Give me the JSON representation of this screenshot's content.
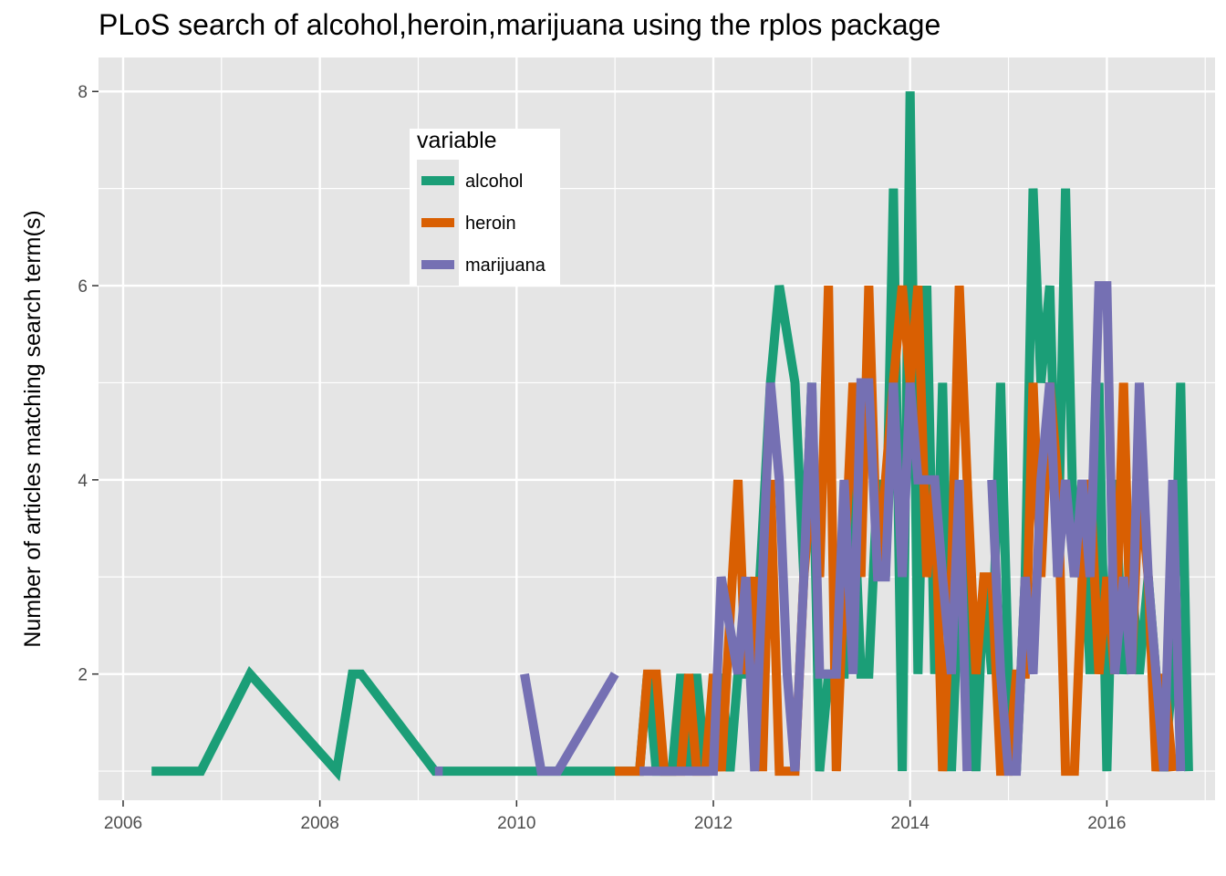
{
  "chart_data": {
    "type": "line",
    "title": "PLoS search of alcohol,heroin,marijuana using the rplos package",
    "xlabel": "",
    "ylabel": "Number of articles matching search term(s)",
    "x_ticks": [
      "2006",
      "2008",
      "2010",
      "2012",
      "2014",
      "2016"
    ],
    "y_ticks": [
      "2",
      "4",
      "6",
      "8"
    ],
    "xlim": [
      2005.75,
      2017.1
    ],
    "ylim": [
      0.7,
      8.35
    ],
    "grid": true,
    "legend": {
      "title": "variable",
      "position": "inside-top-center",
      "entries": [
        "alcohol",
        "heroin",
        "marijuana"
      ]
    },
    "colors": {
      "alcohol": "#1b9e77",
      "heroin": "#d95f02",
      "marijuana": "#7570b3",
      "panel": "#e5e5e5",
      "grid": "#ffffff"
    },
    "series": [
      {
        "name": "alcohol",
        "color": "#1b9e77",
        "points": [
          [
            2006.29,
            1
          ],
          [
            2006.79,
            1
          ],
          [
            2007.29,
            2
          ],
          [
            2008.17,
            1
          ],
          [
            2008.33,
            2
          ],
          [
            2008.42,
            2
          ],
          [
            2009.17,
            1
          ],
          [
            2009.5,
            1
          ],
          [
            2010.0,
            1
          ],
          [
            2010.5,
            1
          ],
          [
            2011.0,
            1
          ],
          [
            2011.25,
            1
          ],
          [
            2011.33,
            2
          ],
          [
            2011.42,
            1
          ],
          [
            2011.58,
            1
          ],
          [
            2011.67,
            2
          ],
          [
            2011.75,
            1
          ],
          [
            2011.83,
            2
          ],
          [
            2011.92,
            1
          ],
          [
            2012.08,
            2
          ],
          [
            2012.17,
            1
          ],
          [
            2012.25,
            2
          ],
          [
            2012.42,
            2
          ],
          [
            2012.58,
            5
          ],
          [
            2012.67,
            6
          ],
          [
            2012.83,
            5
          ],
          [
            2012.92,
            3
          ],
          [
            2013.0,
            5
          ],
          [
            2013.08,
            1
          ],
          [
            2013.17,
            2
          ],
          [
            2013.33,
            2
          ],
          [
            2013.42,
            4
          ],
          [
            2013.5,
            2
          ],
          [
            2013.58,
            2
          ],
          [
            2013.67,
            4
          ],
          [
            2013.75,
            3
          ],
          [
            2013.83,
            7
          ],
          [
            2013.92,
            1
          ],
          [
            2014.0,
            8
          ],
          [
            2014.08,
            2
          ],
          [
            2014.17,
            6
          ],
          [
            2014.25,
            2
          ],
          [
            2014.33,
            5
          ],
          [
            2014.42,
            1
          ],
          [
            2014.5,
            3
          ],
          [
            2014.58,
            4
          ],
          [
            2014.67,
            1
          ],
          [
            2014.75,
            3
          ],
          [
            2014.83,
            2
          ],
          [
            2014.92,
            5
          ],
          [
            2015.0,
            2
          ],
          [
            2015.08,
            1
          ],
          [
            2015.17,
            3
          ],
          [
            2015.25,
            7
          ],
          [
            2015.33,
            5
          ],
          [
            2015.42,
            6
          ],
          [
            2015.5,
            3
          ],
          [
            2015.58,
            7
          ],
          [
            2015.67,
            3
          ],
          [
            2015.75,
            4
          ],
          [
            2015.83,
            2
          ],
          [
            2015.92,
            5
          ],
          [
            2016.0,
            1
          ],
          [
            2016.08,
            4
          ],
          [
            2016.17,
            2
          ],
          [
            2016.25,
            3
          ],
          [
            2016.33,
            2
          ],
          [
            2016.42,
            3
          ],
          [
            2016.5,
            2
          ],
          [
            2016.58,
            1
          ],
          [
            2016.67,
            2
          ],
          [
            2016.75,
            5
          ],
          [
            2016.83,
            1
          ]
        ]
      },
      {
        "name": "heroin",
        "color": "#d95f02",
        "points": [
          [
            2011.0,
            1
          ],
          [
            2011.08,
            1
          ],
          [
            2011.25,
            1
          ],
          [
            2011.33,
            2
          ],
          [
            2011.42,
            2
          ],
          [
            2011.5,
            1
          ],
          [
            2011.67,
            1
          ],
          [
            2011.75,
            2
          ],
          [
            2011.83,
            1
          ],
          [
            2011.92,
            1
          ],
          [
            2012.0,
            2
          ],
          [
            2012.08,
            1
          ],
          [
            2012.25,
            4
          ],
          [
            2012.33,
            2
          ],
          [
            2012.42,
            3
          ],
          [
            2012.5,
            1
          ],
          [
            2012.58,
            4
          ],
          [
            2012.67,
            1
          ],
          [
            2012.83,
            1
          ],
          [
            2012.92,
            3
          ],
          [
            2013.0,
            4
          ],
          [
            2013.08,
            3
          ],
          [
            2013.17,
            6
          ],
          [
            2013.25,
            1
          ],
          [
            2013.33,
            3
          ],
          [
            2013.42,
            5
          ],
          [
            2013.5,
            3
          ],
          [
            2013.58,
            6
          ],
          [
            2013.67,
            3
          ],
          [
            2013.75,
            4
          ],
          [
            2013.83,
            5
          ],
          [
            2013.92,
            6
          ],
          [
            2014.0,
            5
          ],
          [
            2014.08,
            6
          ],
          [
            2014.17,
            3
          ],
          [
            2014.25,
            4
          ],
          [
            2014.33,
            1
          ],
          [
            2014.42,
            3
          ],
          [
            2014.5,
            6
          ],
          [
            2014.58,
            4
          ],
          [
            2014.67,
            2
          ],
          [
            2014.75,
            3
          ],
          [
            2014.83,
            3
          ],
          [
            2014.92,
            1
          ],
          [
            2015.0,
            1
          ],
          [
            2015.08,
            2
          ],
          [
            2015.17,
            2
          ],
          [
            2015.25,
            5
          ],
          [
            2015.33,
            3
          ],
          [
            2015.42,
            5
          ],
          [
            2015.5,
            4
          ],
          [
            2015.58,
            1
          ],
          [
            2015.67,
            1
          ],
          [
            2015.75,
            3
          ],
          [
            2015.83,
            4
          ],
          [
            2015.92,
            2
          ],
          [
            2016.0,
            3
          ],
          [
            2016.08,
            2
          ],
          [
            2016.17,
            5
          ],
          [
            2016.25,
            2
          ],
          [
            2016.33,
            4
          ],
          [
            2016.42,
            3
          ],
          [
            2016.5,
            1
          ],
          [
            2016.58,
            2
          ],
          [
            2016.67,
            1
          ]
        ]
      },
      {
        "name": "marijuana",
        "color": "#7570b3",
        "points": [
          [
            2009.17,
            1
          ],
          [
            2009.25,
            1
          ],
          null,
          [
            2010.08,
            2
          ],
          [
            2010.25,
            1
          ],
          [
            2010.42,
            1
          ],
          [
            2011.0,
            2
          ],
          null,
          [
            2011.25,
            1
          ],
          [
            2011.5,
            1
          ],
          [
            2011.75,
            1
          ],
          [
            2012.0,
            1
          ],
          [
            2012.08,
            3
          ],
          [
            2012.25,
            2
          ],
          [
            2012.33,
            3
          ],
          [
            2012.42,
            1
          ],
          [
            2012.58,
            5
          ],
          [
            2012.67,
            4
          ],
          [
            2012.75,
            2
          ],
          [
            2012.83,
            1
          ],
          [
            2012.92,
            3
          ],
          [
            2013.0,
            5
          ],
          [
            2013.08,
            2
          ],
          [
            2013.25,
            2
          ],
          [
            2013.33,
            4
          ],
          [
            2013.42,
            2
          ],
          [
            2013.5,
            5
          ],
          [
            2013.58,
            5
          ],
          [
            2013.67,
            3
          ],
          [
            2013.75,
            3
          ],
          [
            2013.83,
            5
          ],
          [
            2013.92,
            3
          ],
          [
            2014.0,
            5
          ],
          [
            2014.08,
            4
          ],
          [
            2014.17,
            4
          ],
          [
            2014.25,
            4
          ],
          [
            2014.33,
            3
          ],
          [
            2014.42,
            2
          ],
          [
            2014.5,
            4
          ],
          [
            2014.58,
            1
          ],
          null,
          [
            2014.83,
            4
          ],
          [
            2014.92,
            2
          ],
          [
            2015.0,
            1
          ],
          [
            2015.08,
            1
          ],
          [
            2015.17,
            3
          ],
          [
            2015.25,
            2
          ],
          [
            2015.33,
            4
          ],
          [
            2015.42,
            5
          ],
          [
            2015.5,
            3
          ],
          [
            2015.58,
            4
          ],
          [
            2015.67,
            3
          ],
          [
            2015.75,
            4
          ],
          [
            2015.83,
            3
          ],
          [
            2015.92,
            6
          ],
          [
            2016.0,
            6
          ],
          [
            2016.08,
            2
          ],
          [
            2016.17,
            3
          ],
          [
            2016.25,
            2
          ],
          [
            2016.33,
            5
          ],
          [
            2016.42,
            3
          ],
          [
            2016.5,
            2
          ],
          [
            2016.58,
            1
          ],
          [
            2016.67,
            4
          ],
          [
            2016.75,
            1
          ]
        ]
      }
    ]
  }
}
